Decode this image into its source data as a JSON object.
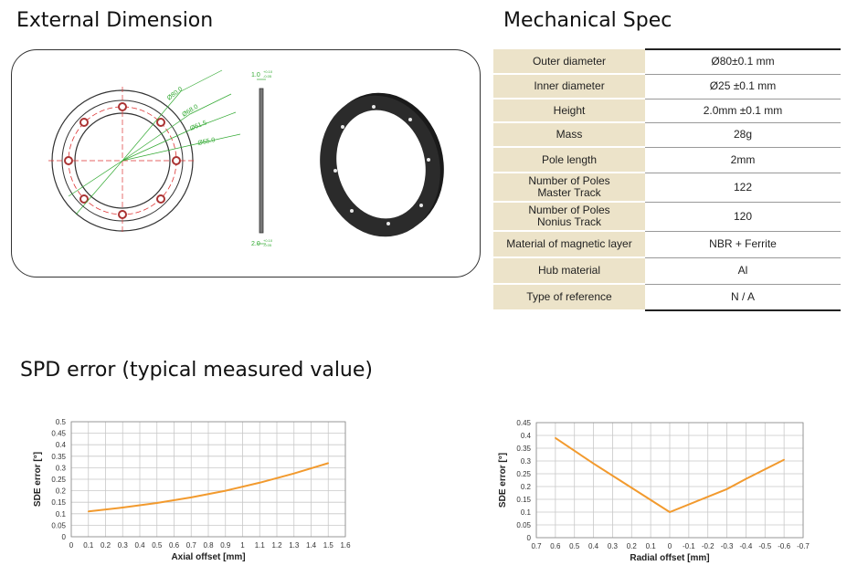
{
  "headings": {
    "external_dimension": "External Dimension",
    "mechanical_spec": "Mechanical Spec",
    "spd_error": "SPD error (typical measured value)"
  },
  "drawing_labels": {
    "d80": "Ø80.0",
    "d68": "Ø68.0",
    "d61_5": "Ø61.5",
    "d55": "Ø55.0",
    "thickness_top": "1.0",
    "thickness_bottom": "2.0",
    "tol_a": "+0.10",
    "tol_b": "-0.05"
  },
  "spec": [
    {
      "label": "Outer diameter",
      "value": "Ø80±0.1 mm"
    },
    {
      "label": "Inner diameter",
      "value": "Ø25 ±0.1 mm"
    },
    {
      "label": "Height",
      "value": "2.0mm ±0.1 mm"
    },
    {
      "label": "Mass",
      "value": "28g"
    },
    {
      "label": "Pole length",
      "value": "2mm"
    },
    {
      "label": "Number of Poles\nMaster Track",
      "value": "122"
    },
    {
      "label": "Number of Poles\nNonius Track",
      "value": "120"
    },
    {
      "label": "Material of magnetic layer",
      "value": "NBR + Ferrite"
    },
    {
      "label": "Hub material",
      "value": "Al"
    },
    {
      "label": "Type of reference",
      "value": "N / A"
    }
  ],
  "chart_data": [
    {
      "type": "line",
      "xlabel": "Axial offset [mm]",
      "ylabel": "SDE error [°]",
      "xlim": [
        0,
        1.6
      ],
      "ylim": [
        0,
        0.5
      ],
      "xticks": [
        "0",
        "0.1",
        "0.2",
        "0.3",
        "0.4",
        "0.5",
        "0.6",
        "0.7",
        "0.8",
        "0.9",
        "1",
        "1.1",
        "1.2",
        "1.3",
        "1.4",
        "1.5",
        "1.6"
      ],
      "yticks": [
        "0",
        "0.05",
        "0.1",
        "0.15",
        "0.2",
        "0.25",
        "0.3",
        "0.35",
        "0.4",
        "0.45",
        "0.5"
      ],
      "x": [
        0.1,
        0.3,
        0.5,
        0.7,
        0.9,
        1.1,
        1.3,
        1.5
      ],
      "values": [
        0.11,
        0.127,
        0.147,
        0.171,
        0.2,
        0.235,
        0.275,
        0.32
      ],
      "color": "#f29a2e",
      "grid": true
    },
    {
      "type": "line",
      "xlabel": "Radial offset [mm]",
      "ylabel": "SDE error [°]",
      "xlim": [
        0.7,
        -0.7
      ],
      "ylim": [
        0,
        0.45
      ],
      "xticks": [
        "0.7",
        "0.6",
        "0.5",
        "0.4",
        "0.3",
        "0.2",
        "0.1",
        "0",
        "-0.1",
        "-0.2",
        "-0.3",
        "-0.4",
        "-0.5",
        "-0.6",
        "-0.7"
      ],
      "yticks": [
        "0",
        "0.05",
        "0.1",
        "0.15",
        "0.2",
        "0.25",
        "0.3",
        "0.35",
        "0.4",
        "0.45"
      ],
      "x": [
        0.6,
        0.4,
        0.2,
        0,
        -0.3,
        -0.4,
        -0.6
      ],
      "values": [
        0.39,
        0.29,
        0.195,
        0.1,
        0.19,
        0.23,
        0.305
      ],
      "color": "#f29a2e",
      "grid": true
    }
  ]
}
